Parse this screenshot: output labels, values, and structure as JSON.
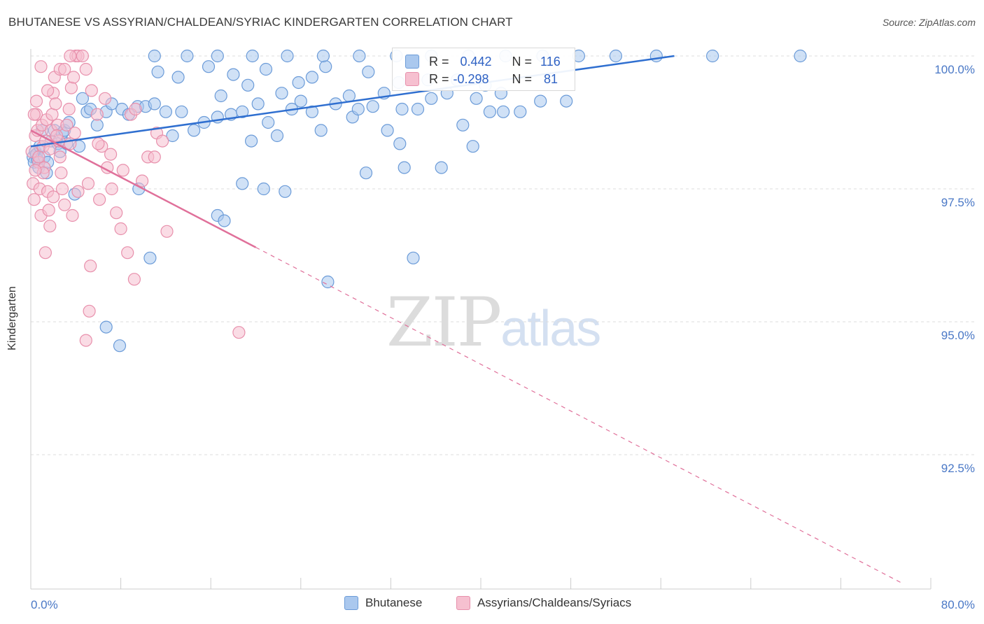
{
  "title": "BHUTANESE VS ASSYRIAN/CHALDEAN/SYRIAC KINDERGARTEN CORRELATION CHART",
  "source": "Source: ZipAtlas.com",
  "watermark": {
    "zip": "ZIP",
    "atlas": "atlas"
  },
  "stats": [
    {
      "r_label": "R =",
      "r_value": "0.442",
      "n_label": "N =",
      "n_value": "116"
    },
    {
      "r_label": "R =",
      "r_value": "-0.298",
      "n_label": "N =",
      "n_value": " 81"
    }
  ],
  "legend": [
    {
      "label": "Bhutanese"
    },
    {
      "label": "Assyrians/Chaldeans/Syriacs"
    }
  ],
  "colors": {
    "blue_fill": "#aac8ee",
    "blue_stroke": "#6b9bd8",
    "blue_line": "#2f6fd0",
    "pink_fill": "#f6c0d0",
    "pink_stroke": "#e890ac",
    "pink_line": "#e0709a",
    "tick_text": "#4a78c6",
    "grid": "#dddddd"
  },
  "chart_data": {
    "type": "scatter",
    "title": "BHUTANESE VS ASSYRIAN/CHALDEAN/SYRIAC KINDERGARTEN CORRELATION CHART",
    "xlabel": "",
    "ylabel": "Kindergarten",
    "xlim": [
      0,
      80
    ],
    "ylim": [
      90.5,
      100.4
    ],
    "x_tick_labels": [
      "0.0%",
      "80.0%"
    ],
    "y_ticks": [
      92.5,
      95.0,
      97.5,
      100.0
    ],
    "y_tick_labels": [
      "92.5%",
      "95.0%",
      "97.5%",
      "100.0%"
    ],
    "grid": "horizontal dashed",
    "legend_position": "bottom",
    "series": [
      {
        "name": "Bhutanese",
        "r": 0.442,
        "n": 116,
        "trend": {
          "x": [
            0,
            57.2
          ],
          "y": [
            98.3,
            100.0
          ],
          "style": "solid"
        },
        "points": [
          [
            0.2,
            98.1
          ],
          [
            0.3,
            98.0
          ],
          [
            0.4,
            98.2
          ],
          [
            0.5,
            98.15
          ],
          [
            0.6,
            98.05
          ],
          [
            0.7,
            97.9
          ],
          [
            0.8,
            98.3
          ],
          [
            1.0,
            98.6
          ],
          [
            1.2,
            98.1
          ],
          [
            1.4,
            97.8
          ],
          [
            1.5,
            98.0
          ],
          [
            1.8,
            98.4
          ],
          [
            2.1,
            98.6
          ],
          [
            2.4,
            98.35
          ],
          [
            2.6,
            98.2
          ],
          [
            2.8,
            98.55
          ],
          [
            3.0,
            98.6
          ],
          [
            3.2,
            98.35
          ],
          [
            3.4,
            98.75
          ],
          [
            3.9,
            97.4
          ],
          [
            4.3,
            98.3
          ],
          [
            4.6,
            99.2
          ],
          [
            5.0,
            98.95
          ],
          [
            5.3,
            99.0
          ],
          [
            5.9,
            98.7
          ],
          [
            6.7,
            98.95
          ],
          [
            7.2,
            99.1
          ],
          [
            8.1,
            99.0
          ],
          [
            8.7,
            98.9
          ],
          [
            9.5,
            99.05
          ],
          [
            10.2,
            99.05
          ],
          [
            11.0,
            99.1
          ],
          [
            12.0,
            98.95
          ],
          [
            12.6,
            98.5
          ],
          [
            13.4,
            98.95
          ],
          [
            14.5,
            98.6
          ],
          [
            15.4,
            98.75
          ],
          [
            16.6,
            98.85
          ],
          [
            17.8,
            98.9
          ],
          [
            18.8,
            98.95
          ],
          [
            19.6,
            98.4
          ],
          [
            20.2,
            99.1
          ],
          [
            21.1,
            98.75
          ],
          [
            21.9,
            98.5
          ],
          [
            22.3,
            99.3
          ],
          [
            23.2,
            99.0
          ],
          [
            24.0,
            99.15
          ],
          [
            25.0,
            98.95
          ],
          [
            25.8,
            98.6
          ],
          [
            27.1,
            99.1
          ],
          [
            28.6,
            98.85
          ],
          [
            29.1,
            99.0
          ],
          [
            30.4,
            99.05
          ],
          [
            31.7,
            98.6
          ],
          [
            33.0,
            99.0
          ],
          [
            34.4,
            99.0
          ],
          [
            35.6,
            99.2
          ],
          [
            37.0,
            99.3
          ],
          [
            38.4,
            98.7
          ],
          [
            39.6,
            99.2
          ],
          [
            40.8,
            98.95
          ],
          [
            42.0,
            98.95
          ],
          [
            43.5,
            98.95
          ],
          [
            45.3,
            99.15
          ],
          [
            47.6,
            99.15
          ],
          [
            41.8,
            99.3
          ],
          [
            39.3,
            98.3
          ],
          [
            32.8,
            98.35
          ],
          [
            36.5,
            97.9
          ],
          [
            34.0,
            96.2
          ],
          [
            10.6,
            96.2
          ],
          [
            16.6,
            97.0
          ],
          [
            6.7,
            94.9
          ],
          [
            7.9,
            94.55
          ],
          [
            26.4,
            95.75
          ],
          [
            29.8,
            97.8
          ],
          [
            33.2,
            97.9
          ],
          [
            20.7,
            97.5
          ],
          [
            17.2,
            96.9
          ],
          [
            9.6,
            97.5
          ],
          [
            18.8,
            97.6
          ],
          [
            22.6,
            97.45
          ],
          [
            11.3,
            99.7
          ],
          [
            13.1,
            99.6
          ],
          [
            15.8,
            99.8
          ],
          [
            18.0,
            99.65
          ],
          [
            20.9,
            99.75
          ],
          [
            23.8,
            99.5
          ],
          [
            26.2,
            99.8
          ],
          [
            30.0,
            99.7
          ],
          [
            32.7,
            99.5
          ],
          [
            35.3,
            99.55
          ],
          [
            37.9,
            99.55
          ],
          [
            40.4,
            99.45
          ],
          [
            11.0,
            100.0
          ],
          [
            13.9,
            100.0
          ],
          [
            16.6,
            100.0
          ],
          [
            19.7,
            100.0
          ],
          [
            22.8,
            100.0
          ],
          [
            26.0,
            100.0
          ],
          [
            29.2,
            100.0
          ],
          [
            32.5,
            100.0
          ],
          [
            35.6,
            100.0
          ],
          [
            38.9,
            100.0
          ],
          [
            42.2,
            100.0
          ],
          [
            45.5,
            100.0
          ],
          [
            48.7,
            100.0
          ],
          [
            52.0,
            100.0
          ],
          [
            55.6,
            100.0
          ],
          [
            60.6,
            100.0
          ],
          [
            68.4,
            100.0
          ],
          [
            16.9,
            99.25
          ],
          [
            19.3,
            99.45
          ],
          [
            25.0,
            99.6
          ],
          [
            28.3,
            99.25
          ],
          [
            31.4,
            99.3
          ]
        ]
      },
      {
        "name": "Assyrians/Chaldeans/Syriacs",
        "r": -0.298,
        "n": 81,
        "trend": {
          "x": [
            0,
            20.0
          ],
          "y": [
            98.6,
            96.4
          ],
          "style": "solid",
          "extension_x": [
            20.0,
            77.3
          ],
          "extension_y": [
            96.4,
            90.1
          ],
          "extension_style": "dashed"
        },
        "points": [
          [
            0.1,
            98.2
          ],
          [
            0.2,
            97.6
          ],
          [
            0.3,
            97.3
          ],
          [
            0.4,
            98.5
          ],
          [
            0.5,
            98.9
          ],
          [
            0.6,
            98.6
          ],
          [
            0.7,
            98.0
          ],
          [
            0.8,
            97.5
          ],
          [
            0.9,
            97.0
          ],
          [
            1.0,
            98.7
          ],
          [
            1.1,
            98.3
          ],
          [
            1.2,
            97.9
          ],
          [
            1.3,
            98.4
          ],
          [
            1.4,
            98.8
          ],
          [
            1.5,
            97.45
          ],
          [
            1.6,
            97.1
          ],
          [
            1.7,
            96.8
          ],
          [
            1.8,
            98.6
          ],
          [
            1.9,
            98.9
          ],
          [
            2.0,
            99.3
          ],
          [
            2.1,
            99.6
          ],
          [
            2.2,
            99.1
          ],
          [
            2.4,
            98.7
          ],
          [
            2.5,
            98.4
          ],
          [
            2.6,
            98.1
          ],
          [
            2.7,
            97.8
          ],
          [
            2.8,
            97.5
          ],
          [
            3.0,
            97.2
          ],
          [
            3.2,
            98.7
          ],
          [
            3.4,
            99.0
          ],
          [
            3.6,
            99.4
          ],
          [
            3.8,
            99.6
          ],
          [
            4.0,
            100.0
          ],
          [
            4.2,
            100.0
          ],
          [
            4.6,
            100.0
          ],
          [
            4.9,
            99.75
          ],
          [
            5.4,
            99.35
          ],
          [
            5.9,
            98.9
          ],
          [
            6.3,
            98.3
          ],
          [
            6.8,
            97.9
          ],
          [
            7.2,
            97.5
          ],
          [
            7.6,
            97.05
          ],
          [
            8.0,
            96.75
          ],
          [
            8.6,
            96.3
          ],
          [
            9.2,
            95.8
          ],
          [
            5.3,
            96.05
          ],
          [
            5.2,
            95.2
          ],
          [
            4.9,
            94.65
          ],
          [
            3.7,
            97.0
          ],
          [
            2.0,
            97.35
          ],
          [
            2.6,
            99.75
          ],
          [
            3.0,
            99.75
          ],
          [
            3.5,
            100.0
          ],
          [
            1.5,
            99.35
          ],
          [
            0.9,
            99.8
          ],
          [
            0.5,
            99.15
          ],
          [
            0.3,
            98.9
          ],
          [
            1.3,
            96.3
          ],
          [
            3.5,
            98.35
          ],
          [
            4.2,
            97.45
          ],
          [
            6.6,
            99.2
          ],
          [
            8.9,
            98.9
          ],
          [
            10.4,
            98.1
          ],
          [
            11.2,
            98.55
          ],
          [
            11.7,
            98.4
          ],
          [
            12.1,
            96.7
          ],
          [
            9.9,
            97.65
          ],
          [
            8.2,
            97.85
          ],
          [
            6.0,
            98.35
          ],
          [
            7.1,
            98.15
          ],
          [
            9.3,
            99.0
          ],
          [
            1.7,
            98.25
          ],
          [
            2.3,
            98.5
          ],
          [
            0.7,
            98.1
          ],
          [
            1.1,
            97.8
          ],
          [
            6.1,
            97.3
          ],
          [
            11.0,
            98.1
          ],
          [
            18.5,
            94.8
          ],
          [
            5.1,
            97.6
          ],
          [
            3.9,
            98.55
          ],
          [
            0.4,
            97.85
          ]
        ]
      }
    ]
  }
}
